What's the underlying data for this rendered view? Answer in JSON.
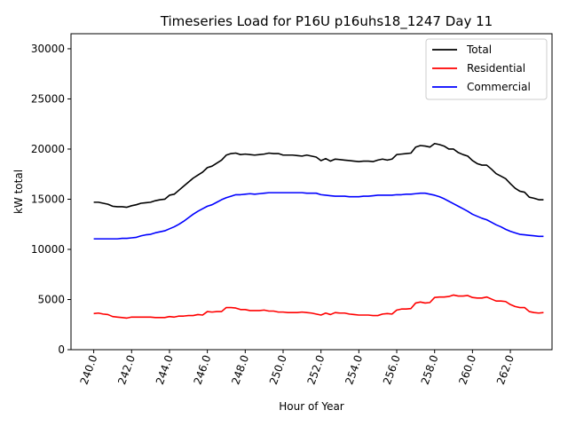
{
  "chart_data": {
    "type": "line",
    "title": "Timeseries Load for P16U p16uhs18_1247  Day 11",
    "xlabel": "Hour of Year",
    "ylabel": "kW total",
    "xlim": [
      238.8,
      264.2
    ],
    "ylim": [
      0,
      31500
    ],
    "x_ticks": [
      240,
      242,
      244,
      246,
      248,
      250,
      252,
      254,
      256,
      258,
      260,
      262
    ],
    "x_tick_labels": [
      "240.0",
      "242.0",
      "244.0",
      "246.0",
      "248.0",
      "250.0",
      "252.0",
      "254.0",
      "256.0",
      "258.0",
      "260.0",
      "262.0"
    ],
    "y_ticks": [
      0,
      5000,
      10000,
      15000,
      20000,
      25000,
      30000
    ],
    "y_tick_labels": [
      "0",
      "5000",
      "10000",
      "15000",
      "20000",
      "25000",
      "30000"
    ],
    "grid": false,
    "legend_position": "top-right",
    "x_start": 240.0,
    "x_step": 0.25,
    "series": [
      {
        "name": "Total",
        "color": "#000000",
        "values": [
          14700,
          14700,
          14600,
          14500,
          14300,
          14250,
          14250,
          14200,
          14350,
          14450,
          14600,
          14650,
          14700,
          14850,
          14950,
          15000,
          15400,
          15500,
          15900,
          16300,
          16700,
          17100,
          17400,
          17700,
          18150,
          18300,
          18600,
          18900,
          19400,
          19550,
          19600,
          19450,
          19500,
          19450,
          19400,
          19450,
          19500,
          19600,
          19550,
          19550,
          19400,
          19400,
          19400,
          19350,
          19300,
          19400,
          19300,
          19200,
          18850,
          19050,
          18800,
          19000,
          18950,
          18900,
          18850,
          18800,
          18750,
          18800,
          18800,
          18750,
          18900,
          19000,
          18900,
          19000,
          19450,
          19500,
          19550,
          19600,
          20200,
          20350,
          20300,
          20200,
          20550,
          20450,
          20300,
          20000,
          20000,
          19650,
          19450,
          19300,
          18850,
          18550,
          18400,
          18400,
          18000,
          17550,
          17300,
          17050,
          16550,
          16100,
          15800,
          15700,
          15200,
          15100,
          14950,
          14950
        ]
      },
      {
        "name": "Residential",
        "color": "#ff0000",
        "values": [
          3600,
          3650,
          3550,
          3500,
          3300,
          3250,
          3200,
          3150,
          3250,
          3250,
          3250,
          3250,
          3250,
          3200,
          3200,
          3200,
          3300,
          3250,
          3350,
          3350,
          3400,
          3400,
          3500,
          3450,
          3800,
          3750,
          3800,
          3800,
          4200,
          4200,
          4150,
          4000,
          4000,
          3900,
          3900,
          3900,
          3950,
          3850,
          3850,
          3750,
          3750,
          3700,
          3700,
          3700,
          3750,
          3700,
          3650,
          3550,
          3450,
          3650,
          3500,
          3700,
          3650,
          3650,
          3550,
          3500,
          3450,
          3450,
          3450,
          3400,
          3400,
          3550,
          3600,
          3550,
          3950,
          4050,
          4050,
          4100,
          4650,
          4750,
          4650,
          4700,
          5200,
          5250,
          5250,
          5300,
          5450,
          5350,
          5350,
          5400,
          5200,
          5150,
          5150,
          5250,
          5050,
          4850,
          4850,
          4800,
          4500,
          4300,
          4200,
          4200,
          3800,
          3700,
          3650,
          3700
        ]
      },
      {
        "name": "Commercial",
        "color": "#0000ff",
        "values": [
          11050,
          11050,
          11050,
          11050,
          11050,
          11050,
          11100,
          11100,
          11150,
          11200,
          11350,
          11450,
          11500,
          11650,
          11750,
          11850,
          12050,
          12250,
          12500,
          12800,
          13150,
          13500,
          13800,
          14050,
          14300,
          14450,
          14700,
          14950,
          15150,
          15300,
          15450,
          15450,
          15500,
          15550,
          15500,
          15550,
          15600,
          15650,
          15650,
          15650,
          15650,
          15650,
          15650,
          15650,
          15650,
          15600,
          15600,
          15600,
          15450,
          15400,
          15350,
          15300,
          15300,
          15300,
          15250,
          15250,
          15250,
          15300,
          15300,
          15350,
          15400,
          15400,
          15400,
          15400,
          15450,
          15450,
          15500,
          15500,
          15550,
          15600,
          15600,
          15500,
          15400,
          15250,
          15050,
          14800,
          14550,
          14300,
          14050,
          13800,
          13500,
          13300,
          13100,
          12950,
          12700,
          12450,
          12250,
          12000,
          11800,
          11650,
          11500,
          11450,
          11400,
          11350,
          11300,
          11300
        ]
      }
    ]
  }
}
